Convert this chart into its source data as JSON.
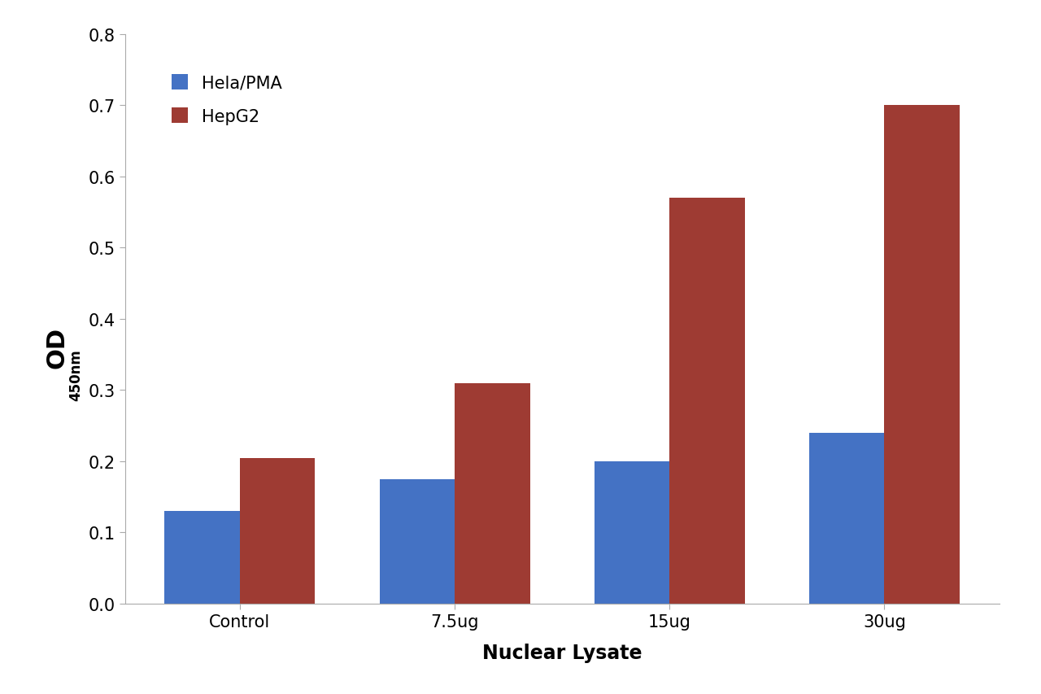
{
  "categories": [
    "Control",
    "7.5ug",
    "15ug",
    "30ug"
  ],
  "hela_pma": [
    0.13,
    0.175,
    0.2,
    0.24
  ],
  "hepg2": [
    0.205,
    0.31,
    0.57,
    0.7
  ],
  "hela_color": "#4472C4",
  "hepg2_color": "#9E3B33",
  "xlabel": "Nuclear Lysate",
  "ylim": [
    0,
    0.8
  ],
  "yticks": [
    0,
    0.1,
    0.2,
    0.3,
    0.4,
    0.5,
    0.6,
    0.7,
    0.8
  ],
  "legend_hela": "Hela/PMA",
  "legend_hepg2": "HepG2",
  "bar_width": 0.35,
  "background_color": "#ffffff",
  "axis_label_fontsize": 17,
  "tick_fontsize": 15,
  "legend_fontsize": 15
}
